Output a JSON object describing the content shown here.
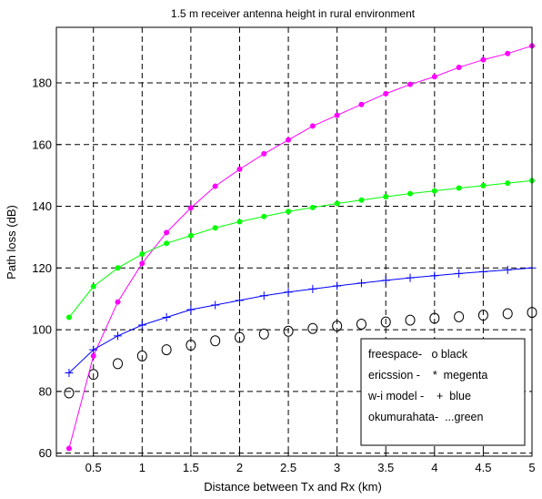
{
  "chart_data": {
    "type": "line",
    "title": "1.5 m receiver antenna height in rural environment",
    "xlabel": "Distance between Tx and Rx (km)",
    "ylabel": "Path loss (dB)",
    "xlim": [
      0.12,
      5.0
    ],
    "ylim": [
      59,
      198
    ],
    "xticks": [
      0.5,
      1,
      1.5,
      2,
      2.5,
      3,
      3.5,
      4,
      4.5,
      5
    ],
    "xtick_labels": [
      "0.5",
      "1",
      "1.5",
      "2",
      "2.5",
      "3",
      "3.5",
      "4",
      "4.5",
      "5"
    ],
    "yticks": [
      60,
      80,
      100,
      120,
      140,
      160,
      180
    ],
    "ytick_labels": [
      "60",
      "80",
      "100",
      "120",
      "140",
      "160",
      "180"
    ],
    "grid": true,
    "legend_position": "bottom-right",
    "legend": [
      "freespace-   o black",
      "ericssion -    *  megenta",
      "w-i model -    +  blue",
      "okumurahata-  ...green"
    ],
    "x": [
      0.25,
      0.5,
      0.75,
      1.0,
      1.25,
      1.5,
      1.75,
      2.0,
      2.25,
      2.5,
      2.75,
      3.0,
      3.25,
      3.5,
      3.75,
      4.0,
      4.25,
      4.5,
      4.75,
      5.0
    ],
    "series": [
      {
        "marker": "circle",
        "color": "#000000",
        "line": false,
        "values": [
          79.5,
          85.5,
          89,
          91.5,
          93.5,
          95,
          96.4,
          97.5,
          98.6,
          99.5,
          100.4,
          101.2,
          101.8,
          102.5,
          103.1,
          103.7,
          104.2,
          104.7,
          105.2,
          105.6
        ]
      },
      {
        "marker": "dot",
        "color": "#ff00ff",
        "line": true,
        "values": [
          61.5,
          91.5,
          109,
          121.5,
          131.5,
          139.5,
          146.5,
          152,
          157,
          161.5,
          166,
          169.5,
          173,
          176.5,
          179.5,
          182,
          185,
          187.5,
          189.5,
          192
        ]
      },
      {
        "marker": "plus",
        "color": "#0000ff",
        "line": true,
        "values": [
          86,
          93.5,
          98,
          101.5,
          104,
          106.5,
          108,
          109.5,
          111,
          112.2,
          113.2,
          114.2,
          115.1,
          116,
          116.8,
          117.5,
          118.2,
          118.8,
          119.4,
          120
        ]
      },
      {
        "marker": "dot",
        "color": "#00ff00",
        "line": true,
        "values": [
          104,
          114,
          120,
          124.5,
          128,
          130.5,
          133,
          135,
          136.7,
          138.3,
          139.6,
          140.9,
          142,
          143.1,
          144.1,
          145,
          145.9,
          146.7,
          147.5,
          148.3
        ]
      }
    ]
  }
}
